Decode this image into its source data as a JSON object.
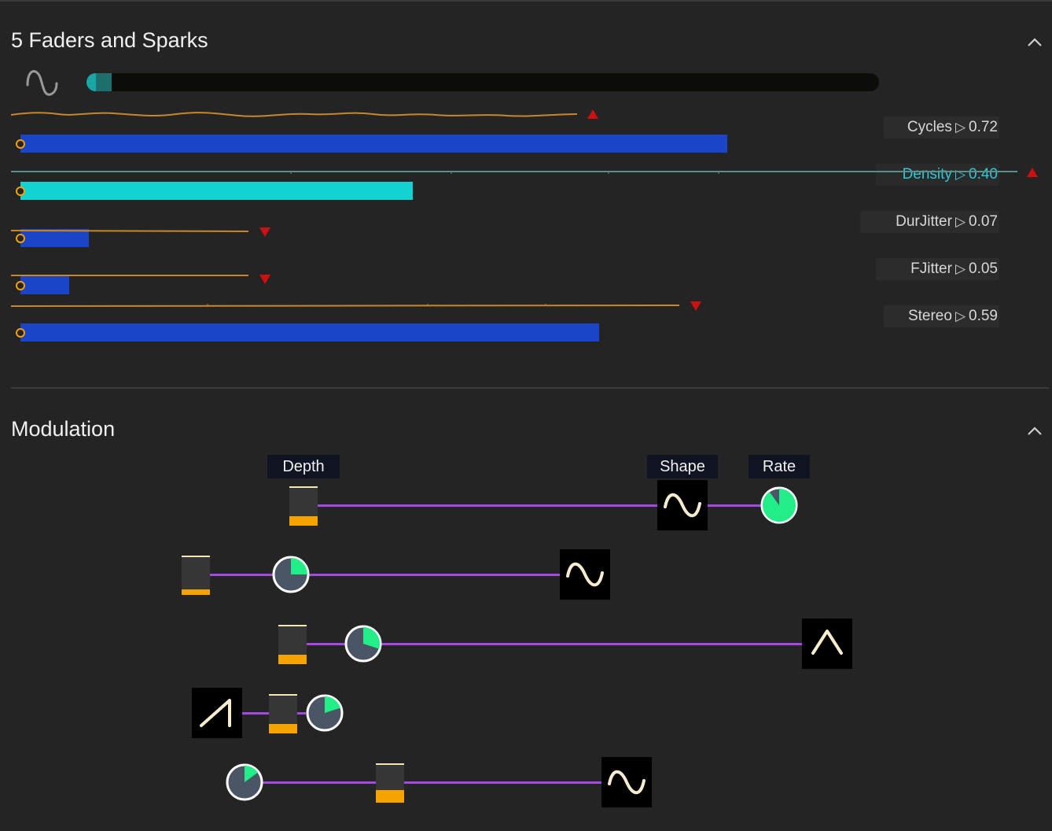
{
  "faders_section": {
    "title": "5 Faders and Sparks",
    "progress": 0.02,
    "faders": [
      {
        "name": "Cycles",
        "value": "0.72",
        "level": 0.72,
        "color": "#1b44c8",
        "spark_color": "#c8862a",
        "warning": "up"
      },
      {
        "name": "Density",
        "value": "0.40",
        "level": 0.4,
        "color": "#12d2d2",
        "spark_color": "#5a8f8a",
        "warning": "up",
        "highlighted": true
      },
      {
        "name": "DurJitter",
        "value": "0.07",
        "level": 0.07,
        "color": "#1b44c8",
        "spark_color": "#c8862a",
        "warning": "down"
      },
      {
        "name": "FJitter",
        "value": "0.05",
        "level": 0.05,
        "color": "#1b44c8",
        "spark_color": "#c8862a",
        "warning": "down"
      },
      {
        "name": "Stereo",
        "value": "0.59",
        "level": 0.59,
        "color": "#1b44c8",
        "spark_color": "#c8862a",
        "warning": "down"
      }
    ],
    "value_separator": "▷"
  },
  "modulation_section": {
    "title": "Modulation",
    "column_labels": [
      "Depth",
      "Shape",
      "Rate"
    ],
    "rows": [
      {
        "shape": "sine",
        "depth": 0.25,
        "rate": 0.9
      },
      {
        "shape": "sine",
        "depth": 0.15,
        "rate": 0.25
      },
      {
        "shape": "triangle",
        "depth": 0.25,
        "rate": 0.3
      },
      {
        "shape": "saw",
        "depth": 0.25,
        "rate": 0.2
      },
      {
        "shape": "sine",
        "depth": 0.35,
        "rate": 0.15
      }
    ]
  },
  "colors": {
    "background": "#242424",
    "accent_purple": "#a349e6",
    "rate_green": "#22ee88",
    "depth_orange": "#f5a300"
  },
  "icons": [
    "sine-wave-icon",
    "chevron-up-icon",
    "warning-triangle-icon",
    "fader-handle-icon"
  ]
}
